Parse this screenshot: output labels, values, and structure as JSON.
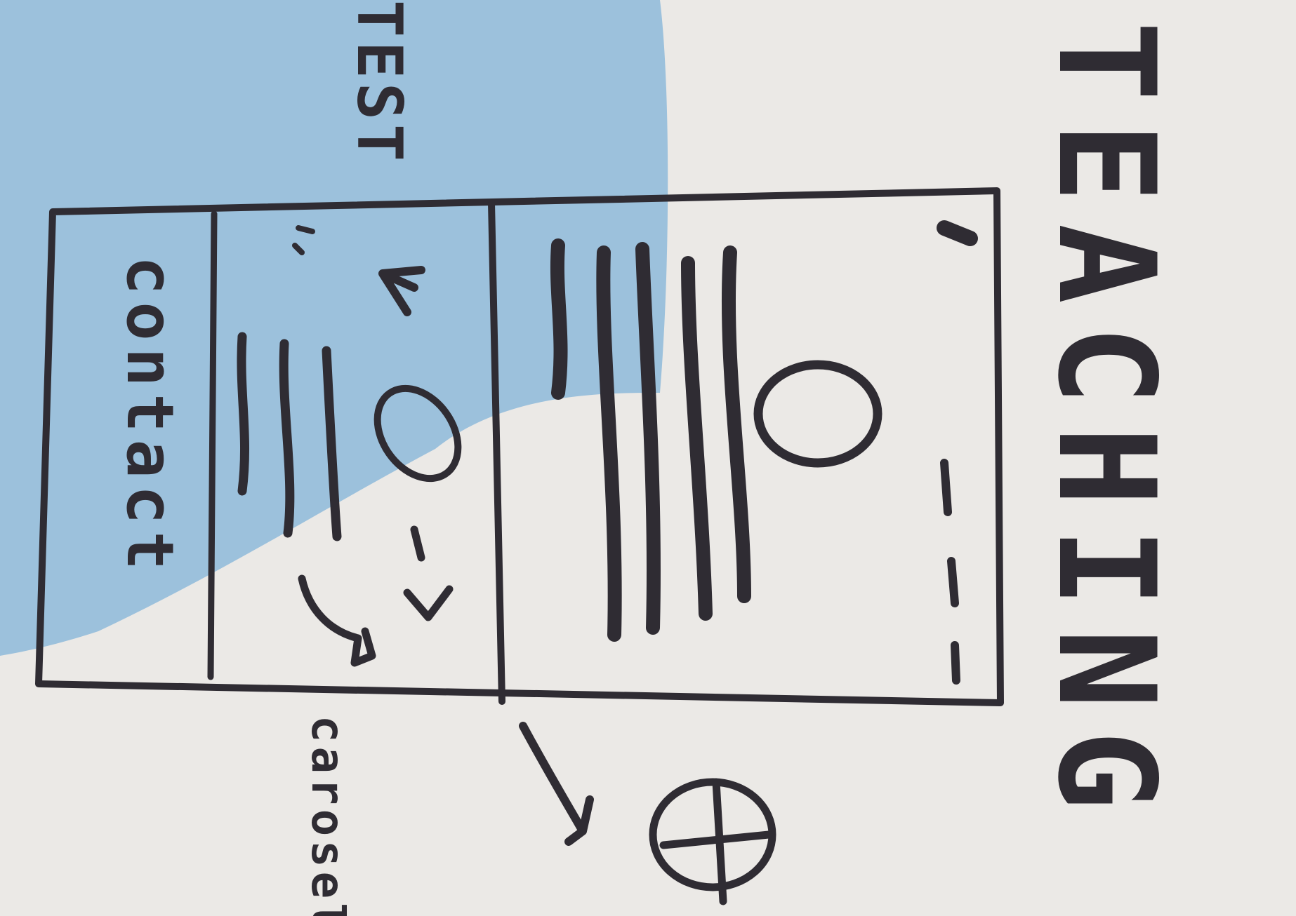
{
  "title": "TEACHING",
  "labels": {
    "test": "TEST",
    "contact": "contact",
    "carousel": "carosel"
  },
  "colors": {
    "paper": "#ebe9e6",
    "blue": "#9cc1dc",
    "ink": "#2f2c33"
  },
  "icons": [
    "dot-icon",
    "circle-icon",
    "plus-in-circle-icon",
    "arrow-icon",
    "left-arrow-icon",
    "right-arrow-icon"
  ]
}
